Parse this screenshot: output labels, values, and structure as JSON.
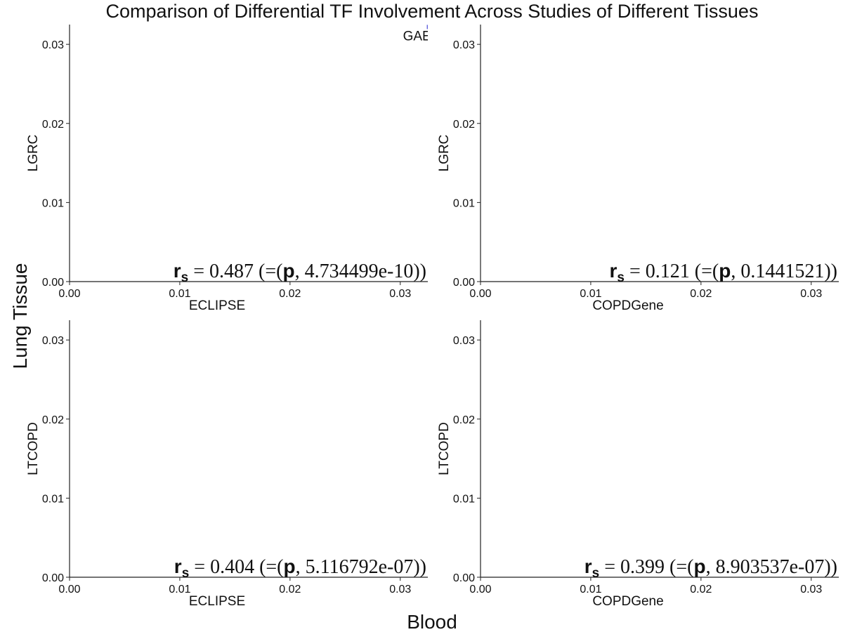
{
  "title": "Comparison of Differential TF Involvement Across Studies of Different Tissues",
  "supxlabel": "Blood",
  "supylabel": "Lung Tissue",
  "colors": {
    "point": "#6666dd",
    "text": "#111111",
    "axis": "#222222"
  },
  "chart_data": [
    {
      "type": "scatter",
      "xlabel": "ECLIPSE",
      "ylabel": "LGRC",
      "xlim": [
        0,
        0.0325
      ],
      "ylim": [
        0,
        0.0325
      ],
      "xticks": [
        "0.00",
        "0.01",
        "0.02",
        "0.03"
      ],
      "yticks": [
        "0.00",
        "0.01",
        "0.02",
        "0.03"
      ],
      "grid": false,
      "annotation": {
        "label": "r",
        "subscript": "s",
        "equals": "=",
        "value": "0.487",
        "p_prefix": "(=(",
        "p_label": "p",
        "p_value": ", 4.734499e-10",
        "close": "))"
      },
      "points": [
        {
          "x": 0.0326,
          "y": 0.0322,
          "label": "GAE"
        }
      ]
    },
    {
      "type": "scatter",
      "xlabel": "COPDGene",
      "ylabel": "LGRC",
      "xlim": [
        0,
        0.0325
      ],
      "ylim": [
        0,
        0.0325
      ],
      "xticks": [
        "0.00",
        "0.01",
        "0.02",
        "0.03"
      ],
      "yticks": [
        "0.00",
        "0.01",
        "0.02",
        "0.03"
      ],
      "grid": false,
      "annotation": {
        "label": "r",
        "subscript": "s",
        "equals": "=",
        "value": "0.121",
        "p_prefix": "(=(",
        "p_label": "p",
        "p_value": ", 0.1441521",
        "close": "))"
      },
      "points": []
    },
    {
      "type": "scatter",
      "xlabel": "ECLIPSE",
      "ylabel": "LTCOPD",
      "xlim": [
        0,
        0.0325
      ],
      "ylim": [
        0,
        0.0325
      ],
      "xticks": [
        "0.00",
        "0.01",
        "0.02",
        "0.03"
      ],
      "yticks": [
        "0.00",
        "0.01",
        "0.02",
        "0.03"
      ],
      "grid": false,
      "annotation": {
        "label": "r",
        "subscript": "s",
        "equals": "=",
        "value": "0.404",
        "p_prefix": "(=(",
        "p_label": "p",
        "p_value": ", 5.116792e-07",
        "close": "))"
      },
      "points": []
    },
    {
      "type": "scatter",
      "xlabel": "COPDGene",
      "ylabel": "LTCOPD",
      "xlim": [
        0,
        0.0325
      ],
      "ylim": [
        0,
        0.0325
      ],
      "xticks": [
        "0.00",
        "0.01",
        "0.02",
        "0.03"
      ],
      "yticks": [
        "0.00",
        "0.01",
        "0.02",
        "0.03"
      ],
      "grid": false,
      "annotation": {
        "label": "r",
        "subscript": "s",
        "equals": "=",
        "value": "0.399",
        "p_prefix": "(=(",
        "p_label": "p",
        "p_value": ", 8.903537e-07",
        "close": "))"
      },
      "points": []
    }
  ]
}
